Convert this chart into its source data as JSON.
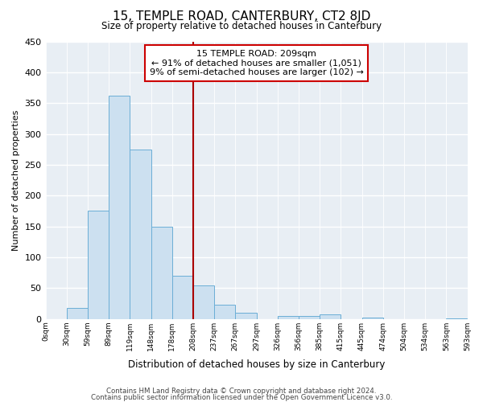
{
  "title": "15, TEMPLE ROAD, CANTERBURY, CT2 8JD",
  "subtitle": "Size of property relative to detached houses in Canterbury",
  "xlabel": "Distribution of detached houses by size in Canterbury",
  "ylabel": "Number of detached properties",
  "bar_color": "#cce0f0",
  "bar_edge_color": "#6baed6",
  "background_color": "#ffffff",
  "plot_bg_color": "#e8eef4",
  "grid_color": "#ffffff",
  "bar_heights": [
    0,
    18,
    175,
    362,
    275,
    150,
    70,
    55,
    23,
    10,
    0,
    5,
    5,
    8,
    0,
    2,
    0,
    0,
    0,
    1
  ],
  "bin_labels": [
    "0sqm",
    "30sqm",
    "59sqm",
    "89sqm",
    "119sqm",
    "148sqm",
    "178sqm",
    "208sqm",
    "237sqm",
    "267sqm",
    "297sqm",
    "326sqm",
    "356sqm",
    "385sqm",
    "415sqm",
    "445sqm",
    "474sqm",
    "504sqm",
    "534sqm",
    "563sqm",
    "593sqm"
  ],
  "ylim": [
    0,
    450
  ],
  "yticks": [
    0,
    50,
    100,
    150,
    200,
    250,
    300,
    350,
    400,
    450
  ],
  "reference_line_bin": 7,
  "reference_line_color": "#aa0000",
  "annotation_title": "15 TEMPLE ROAD: 209sqm",
  "annotation_line1": "← 91% of detached houses are smaller (1,051)",
  "annotation_line2": "9% of semi-detached houses are larger (102) →",
  "annotation_box_edge": "#cc0000",
  "footnote1": "Contains HM Land Registry data © Crown copyright and database right 2024.",
  "footnote2": "Contains public sector information licensed under the Open Government Licence v3.0."
}
